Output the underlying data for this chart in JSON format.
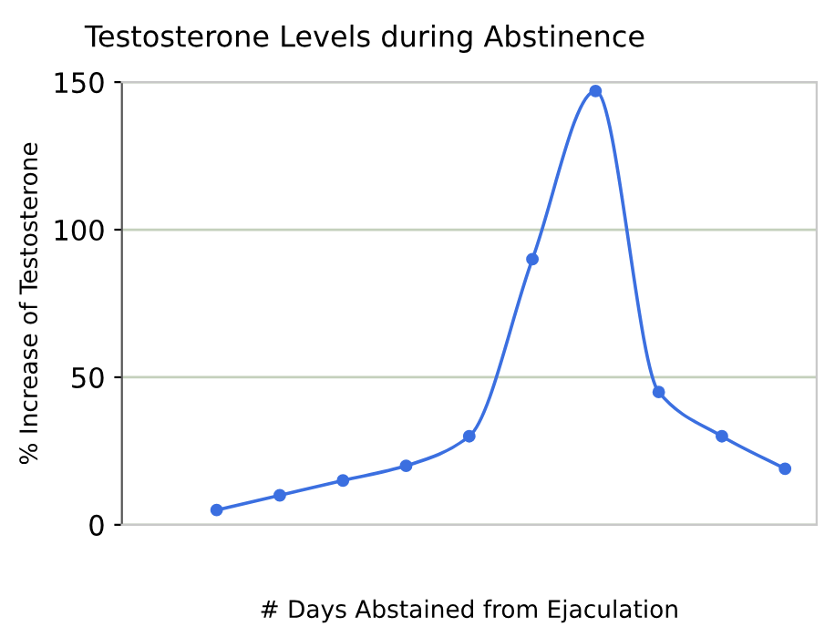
{
  "chart_data": {
    "type": "line",
    "title": "Testosterone Levels during Abstinence",
    "xlabel": "# Days Abstained from Ejaculation",
    "ylabel": "% Increase of Testosterone",
    "categories": [
      null,
      null,
      null,
      null,
      null,
      null,
      null,
      null,
      null,
      null
    ],
    "series": [
      {
        "color": "#3b6fe0",
        "values": [
          5,
          10,
          15,
          20,
          30,
          90,
          147,
          45,
          30,
          19
        ]
      }
    ],
    "ylim": [
      0,
      150
    ],
    "yticks": [
      0,
      50,
      100,
      150
    ],
    "grid": "y",
    "marker": "circle",
    "line_style": "solid"
  }
}
